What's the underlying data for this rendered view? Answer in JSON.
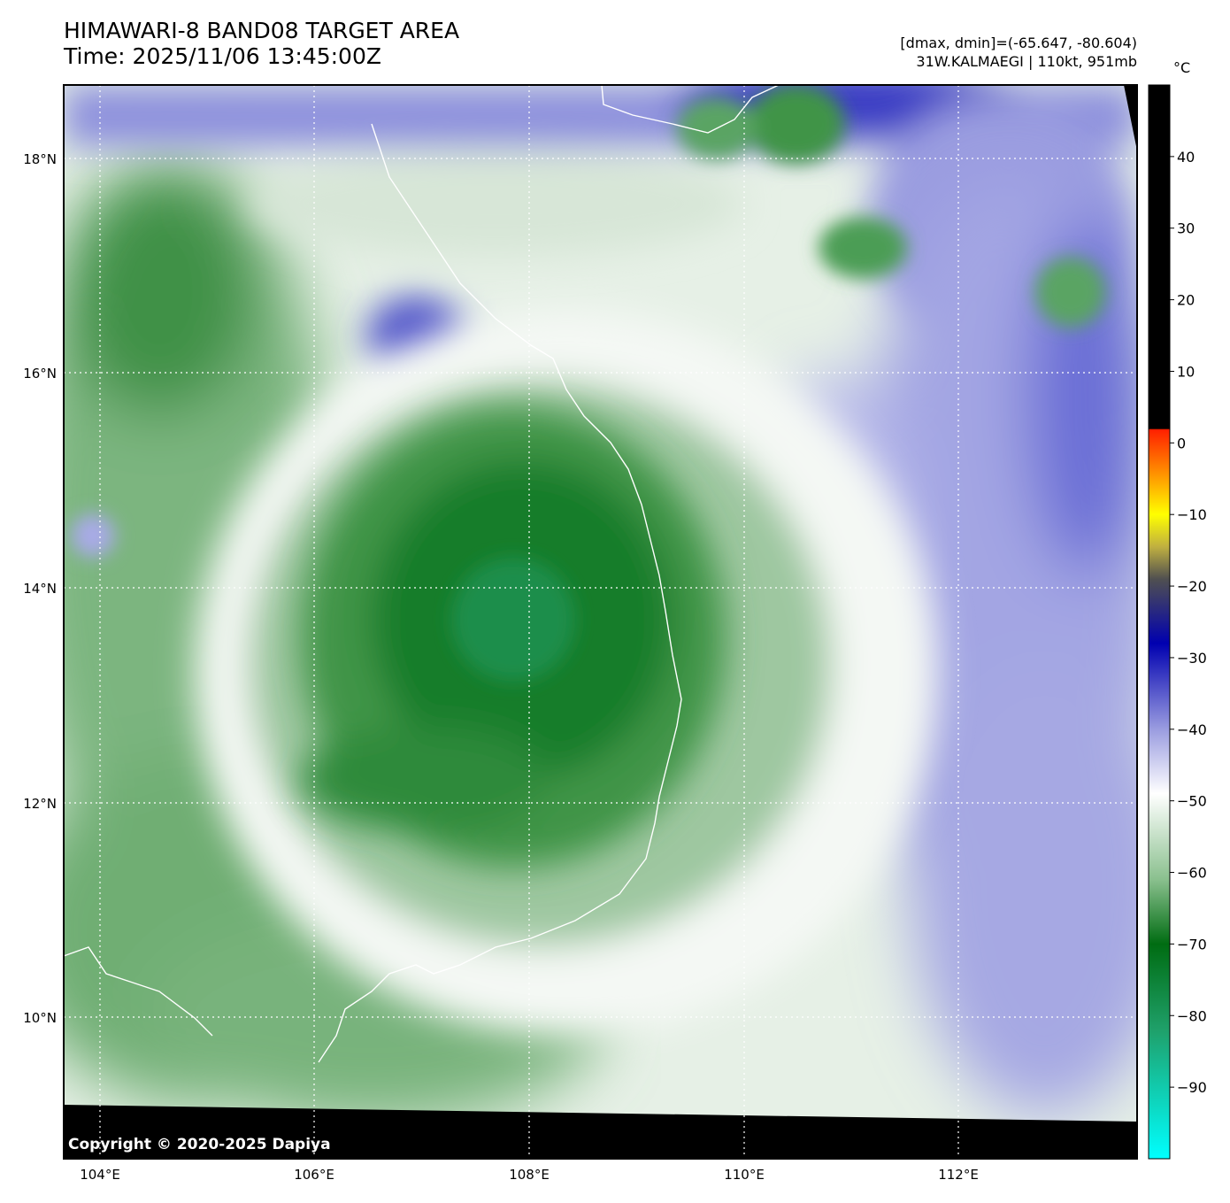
{
  "title": {
    "line1": "HIMAWARI-8 BAND08 TARGET AREA",
    "line2": "Time: 2025/11/06 13:45:00Z"
  },
  "info": {
    "range": "[dmax, dmin]=(-65.647, -80.604)",
    "storm": "31W.KALMAEGI | 110kt, 951mb"
  },
  "colorbar": {
    "unit": "°C",
    "ticks": [
      "40",
      "30",
      "20",
      "10",
      "0",
      "−10",
      "−20",
      "−30",
      "−40",
      "−50",
      "−60",
      "−70",
      "−80",
      "−90"
    ],
    "min": -100,
    "max": 50
  },
  "lat_labels": [
    "18°N",
    "16°N",
    "14°N",
    "12°N",
    "10°N"
  ],
  "lon_labels": [
    "104°E",
    "106°E",
    "108°E",
    "110°E",
    "112°E"
  ],
  "copyright": "Copyright © 2020-2025 Dapiya",
  "colors": {
    "cold_green": "#0b7a2a",
    "mid_green": "#5aa463",
    "white": "#ffffff",
    "lavender": "#9a9ce0",
    "blue": "#3b3fc0",
    "black": "#000000"
  }
}
